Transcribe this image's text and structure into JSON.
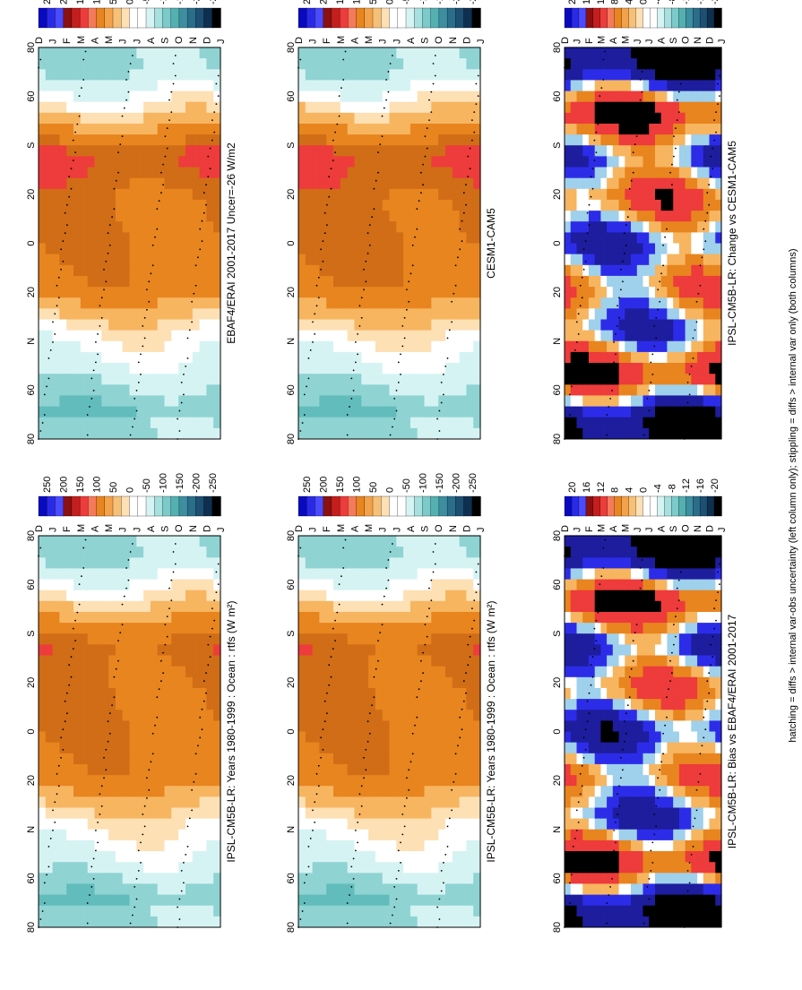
{
  "footer_caption": "hatching = diffs > internal var-obs uncertainty (left column only); stippling = diffs > internal var only (both columns)",
  "months": [
    "J",
    "F",
    "M",
    "A",
    "M",
    "J",
    "J",
    "A",
    "S",
    "O",
    "N",
    "D",
    "J"
  ],
  "season_axis": [
    "D",
    "J",
    "F",
    "M",
    "A",
    "M",
    "J",
    "J",
    "A",
    "S",
    "O",
    "N",
    "D",
    "J"
  ],
  "lat_ticks": [
    "80",
    "60",
    "N",
    "20",
    "0",
    "20",
    "S",
    "60",
    "80"
  ],
  "colors": {
    "orange": "#e8851f",
    "dark_orange": "#d06d16",
    "light_orange": "#f7b560",
    "peach": "#fde0b4",
    "red": "#ee3b3b",
    "white": "#ffffff",
    "cyan_pale": "#d6f3f3",
    "cyan": "#8fd3d3",
    "teal": "#62bcbc",
    "navy": "#1d1d9e",
    "blue": "#2c2ce8",
    "black": "#000000"
  },
  "colorbars": {
    "abs": {
      "labels": [
        "250",
        "200",
        "150",
        "100",
        "50",
        "0",
        "-50",
        "-100",
        "-150",
        "-200",
        "-250"
      ],
      "swatches": [
        "#0909c0",
        "#2a2ae6",
        "#4a4aff",
        "#8b1010",
        "#c41e1e",
        "#ee3b3b",
        "#f47a5a",
        "#e8851f",
        "#f2a24a",
        "#f7c078",
        "#fde0b4",
        "#ffffff",
        "#ffffff",
        "#d6f3f3",
        "#a8e0e0",
        "#7ccaca",
        "#55b0b0",
        "#3d8ea0",
        "#2b6e8a",
        "#1d4f72",
        "#0f2f50",
        "#000000"
      ]
    },
    "diff": {
      "labels": [
        "20",
        "16",
        "12",
        "8",
        "4",
        "0",
        "-4",
        "-8",
        "-12",
        "-16",
        "-20"
      ],
      "swatches": [
        "#0909c0",
        "#2a2ae6",
        "#4a4aff",
        "#8b1010",
        "#c41e1e",
        "#ee3b3b",
        "#f47a5a",
        "#e8851f",
        "#f2a24a",
        "#f7c078",
        "#fde0b4",
        "#ffffff",
        "#ffffff",
        "#d6f3f3",
        "#a8e0e0",
        "#7ccaca",
        "#55b0b0",
        "#3d8ea0",
        "#2b6e8a",
        "#1d4f72",
        "#0f2f50",
        "#000000"
      ]
    }
  },
  "chart_data": [
    {
      "id": "p1",
      "type": "heatmap",
      "title": "IPSL-CM5B-LR: Years 1980-1999 : Ocean : rtfs (W m²)",
      "x": "month",
      "y": "latitude",
      "ylim": [
        -90,
        90
      ],
      "colorbar": "abs",
      "lat_profile": [
        [
          -80,
          -60
        ],
        [
          -60,
          -20
        ],
        [
          -40,
          5
        ],
        [
          -20,
          60
        ],
        [
          0,
          70
        ],
        [
          20,
          70
        ],
        [
          40,
          80
        ],
        [
          60,
          10
        ],
        [
          80,
          -40
        ]
      ]
    },
    {
      "id": "p2",
      "type": "heatmap",
      "title": "IPSL-CM5B-LR: Years 1980-1999 : Ocean : rtfs (W m²)",
      "x": "month",
      "y": "latitude",
      "ylim": [
        -90,
        90
      ],
      "colorbar": "abs",
      "lat_profile": [
        [
          -80,
          -60
        ],
        [
          -60,
          -20
        ],
        [
          -40,
          5
        ],
        [
          -20,
          60
        ],
        [
          0,
          70
        ],
        [
          20,
          70
        ],
        [
          40,
          80
        ],
        [
          60,
          10
        ],
        [
          80,
          -40
        ]
      ]
    },
    {
      "id": "p3",
      "type": "heatmap",
      "title": "CESM1-CAM5",
      "x": "month",
      "y": "latitude",
      "ylim": [
        -90,
        90
      ],
      "colorbar": "abs",
      "lat_profile": [
        [
          -80,
          -60
        ],
        [
          -60,
          -25
        ],
        [
          -40,
          5
        ],
        [
          -20,
          65
        ],
        [
          0,
          75
        ],
        [
          20,
          75
        ],
        [
          40,
          95
        ],
        [
          60,
          15
        ],
        [
          80,
          -40
        ]
      ]
    },
    {
      "id": "p4",
      "type": "heatmap",
      "title": "EBAF4/ERAI 2001-2017 Uncer=-26 W/m2",
      "x": "month",
      "y": "latitude",
      "ylim": [
        -90,
        90
      ],
      "colorbar": "abs",
      "lat_profile": [
        [
          -80,
          -60
        ],
        [
          -60,
          -25
        ],
        [
          -40,
          0
        ],
        [
          -20,
          60
        ],
        [
          0,
          70
        ],
        [
          20,
          70
        ],
        [
          40,
          95
        ],
        [
          60,
          10
        ],
        [
          80,
          -40
        ]
      ]
    },
    {
      "id": "p5",
      "type": "heatmap",
      "title": "IPSL-CM5B-LR: Change vs CESM1-CAM5",
      "x": "month",
      "y": "latitude",
      "ylim": [
        -90,
        90
      ],
      "colorbar": "diff",
      "lat_profile": [
        [
          -80,
          20
        ],
        [
          -60,
          -20
        ],
        [
          -40,
          8
        ],
        [
          -20,
          -8
        ],
        [
          0,
          10
        ],
        [
          20,
          -12
        ],
        [
          40,
          6
        ],
        [
          60,
          -20
        ],
        [
          80,
          20
        ]
      ]
    },
    {
      "id": "p6",
      "type": "heatmap",
      "title": "IPSL-CM5B-LR: Bias vs EBAF4/ERAI 2001-2017",
      "x": "month",
      "y": "latitude",
      "ylim": [
        -90,
        90
      ],
      "colorbar": "diff",
      "lat_profile": [
        [
          -80,
          20
        ],
        [
          -60,
          -20
        ],
        [
          -40,
          10
        ],
        [
          -20,
          -8
        ],
        [
          0,
          12
        ],
        [
          20,
          -10
        ],
        [
          40,
          10
        ],
        [
          60,
          -20
        ],
        [
          80,
          20
        ]
      ]
    }
  ]
}
